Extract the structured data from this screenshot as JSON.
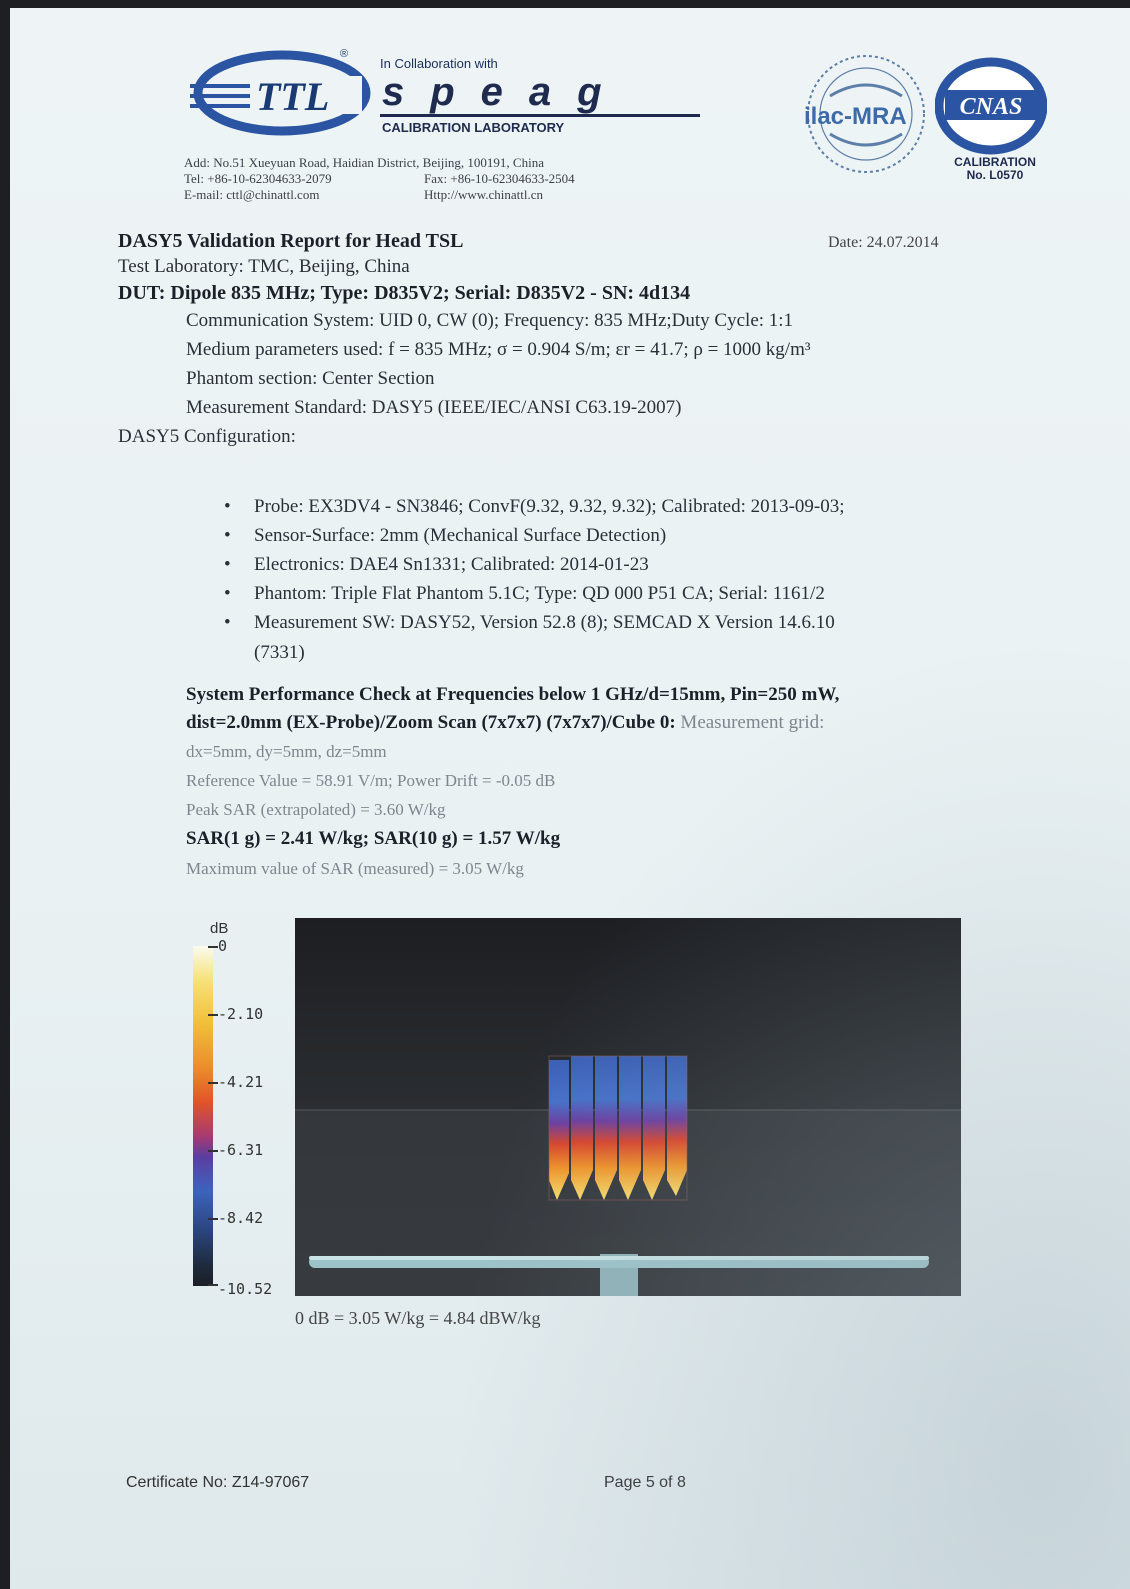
{
  "header": {
    "ttl_logo_text": "TTL",
    "registered_mark": "®",
    "collab_text": "In Collaboration with",
    "speag_text": "speag",
    "calibration_lab": "CALIBRATION LABORATORY",
    "address": "Add: No.51 Xueyuan Road, Haidian District, Beijing, 100191, China",
    "tel": "Tel: +86-10-62304633-2079",
    "fax": "Fax: +86-10-62304633-2504",
    "email": "E-mail: cttl@chinattl.com",
    "http": "Http://www.chinattl.cn",
    "ilac_text": "ilac-MRA",
    "cnas_text": "CNAS",
    "cnas_calibration": "CALIBRATION",
    "cnas_no": "No. L0570"
  },
  "report": {
    "title": "DASY5 Validation Report for Head TSL",
    "date": "Date: 24.07.2014",
    "test_lab": "Test Laboratory: TMC, Beijing, China",
    "dut": "DUT: Dipole 835 MHz; Type: D835V2; Serial: D835V2 - SN: 4d134",
    "communication": "Communication System: UID 0, CW (0); Frequency: 835 MHz;Duty Cycle: 1:1",
    "medium": "Medium parameters used: f = 835 MHz; σ = 0.904 S/m; εr = 41.7; ρ = 1000 kg/m³",
    "phantom_section": "Phantom section: Center Section",
    "measurement_standard": "Measurement Standard: DASY5 (IEEE/IEC/ANSI C63.19-2007)",
    "dasy_config": "DASY5 Configuration:",
    "config_items": [
      "Probe: EX3DV4 - SN3846; ConvF(9.32, 9.32, 9.32); Calibrated: 2013-09-03;",
      "Sensor-Surface: 2mm (Mechanical Surface Detection)",
      "Electronics: DAE4 Sn1331; Calibrated: 2014-01-23",
      "Phantom: Triple Flat Phantom 5.1C; Type: QD 000 P51 CA; Serial: 1161/2",
      "Measurement SW: DASY52, Version 52.8 (8); SEMCAD X Version 14.6.10",
      "(7331)"
    ],
    "spc_line1": "System Performance Check at Frequencies below 1 GHz/d=15mm, Pin=250 mW,",
    "spc_line2_bold": "dist=2.0mm (EX-Probe)/Zoom Scan (7x7x7) (7x7x7)/Cube 0:",
    "spc_line2_grey": " Measurement grid:",
    "grid": "dx=5mm, dy=5mm, dz=5mm",
    "reference_value": "Reference Value = 58.91 V/m; Power Drift = -0.05 dB",
    "peak_sar": "Peak SAR (extrapolated) = 3.60 W/kg",
    "sar_values": "SAR(1 g) = 2.41 W/kg; SAR(10 g) = 1.57 W/kg",
    "max_sar": "Maximum value of SAR (measured) = 3.05 W/kg"
  },
  "scale": {
    "unit": "dB",
    "ticks": [
      "0",
      "-2.10",
      "-4.21",
      "-6.31",
      "-8.42",
      "-10.52"
    ]
  },
  "caption": "0 dB = 3.05 W/kg = 4.84 dBW/kg",
  "footer": {
    "certificate": "Certificate No: Z14-97067",
    "page": "Page 5 of 8"
  }
}
